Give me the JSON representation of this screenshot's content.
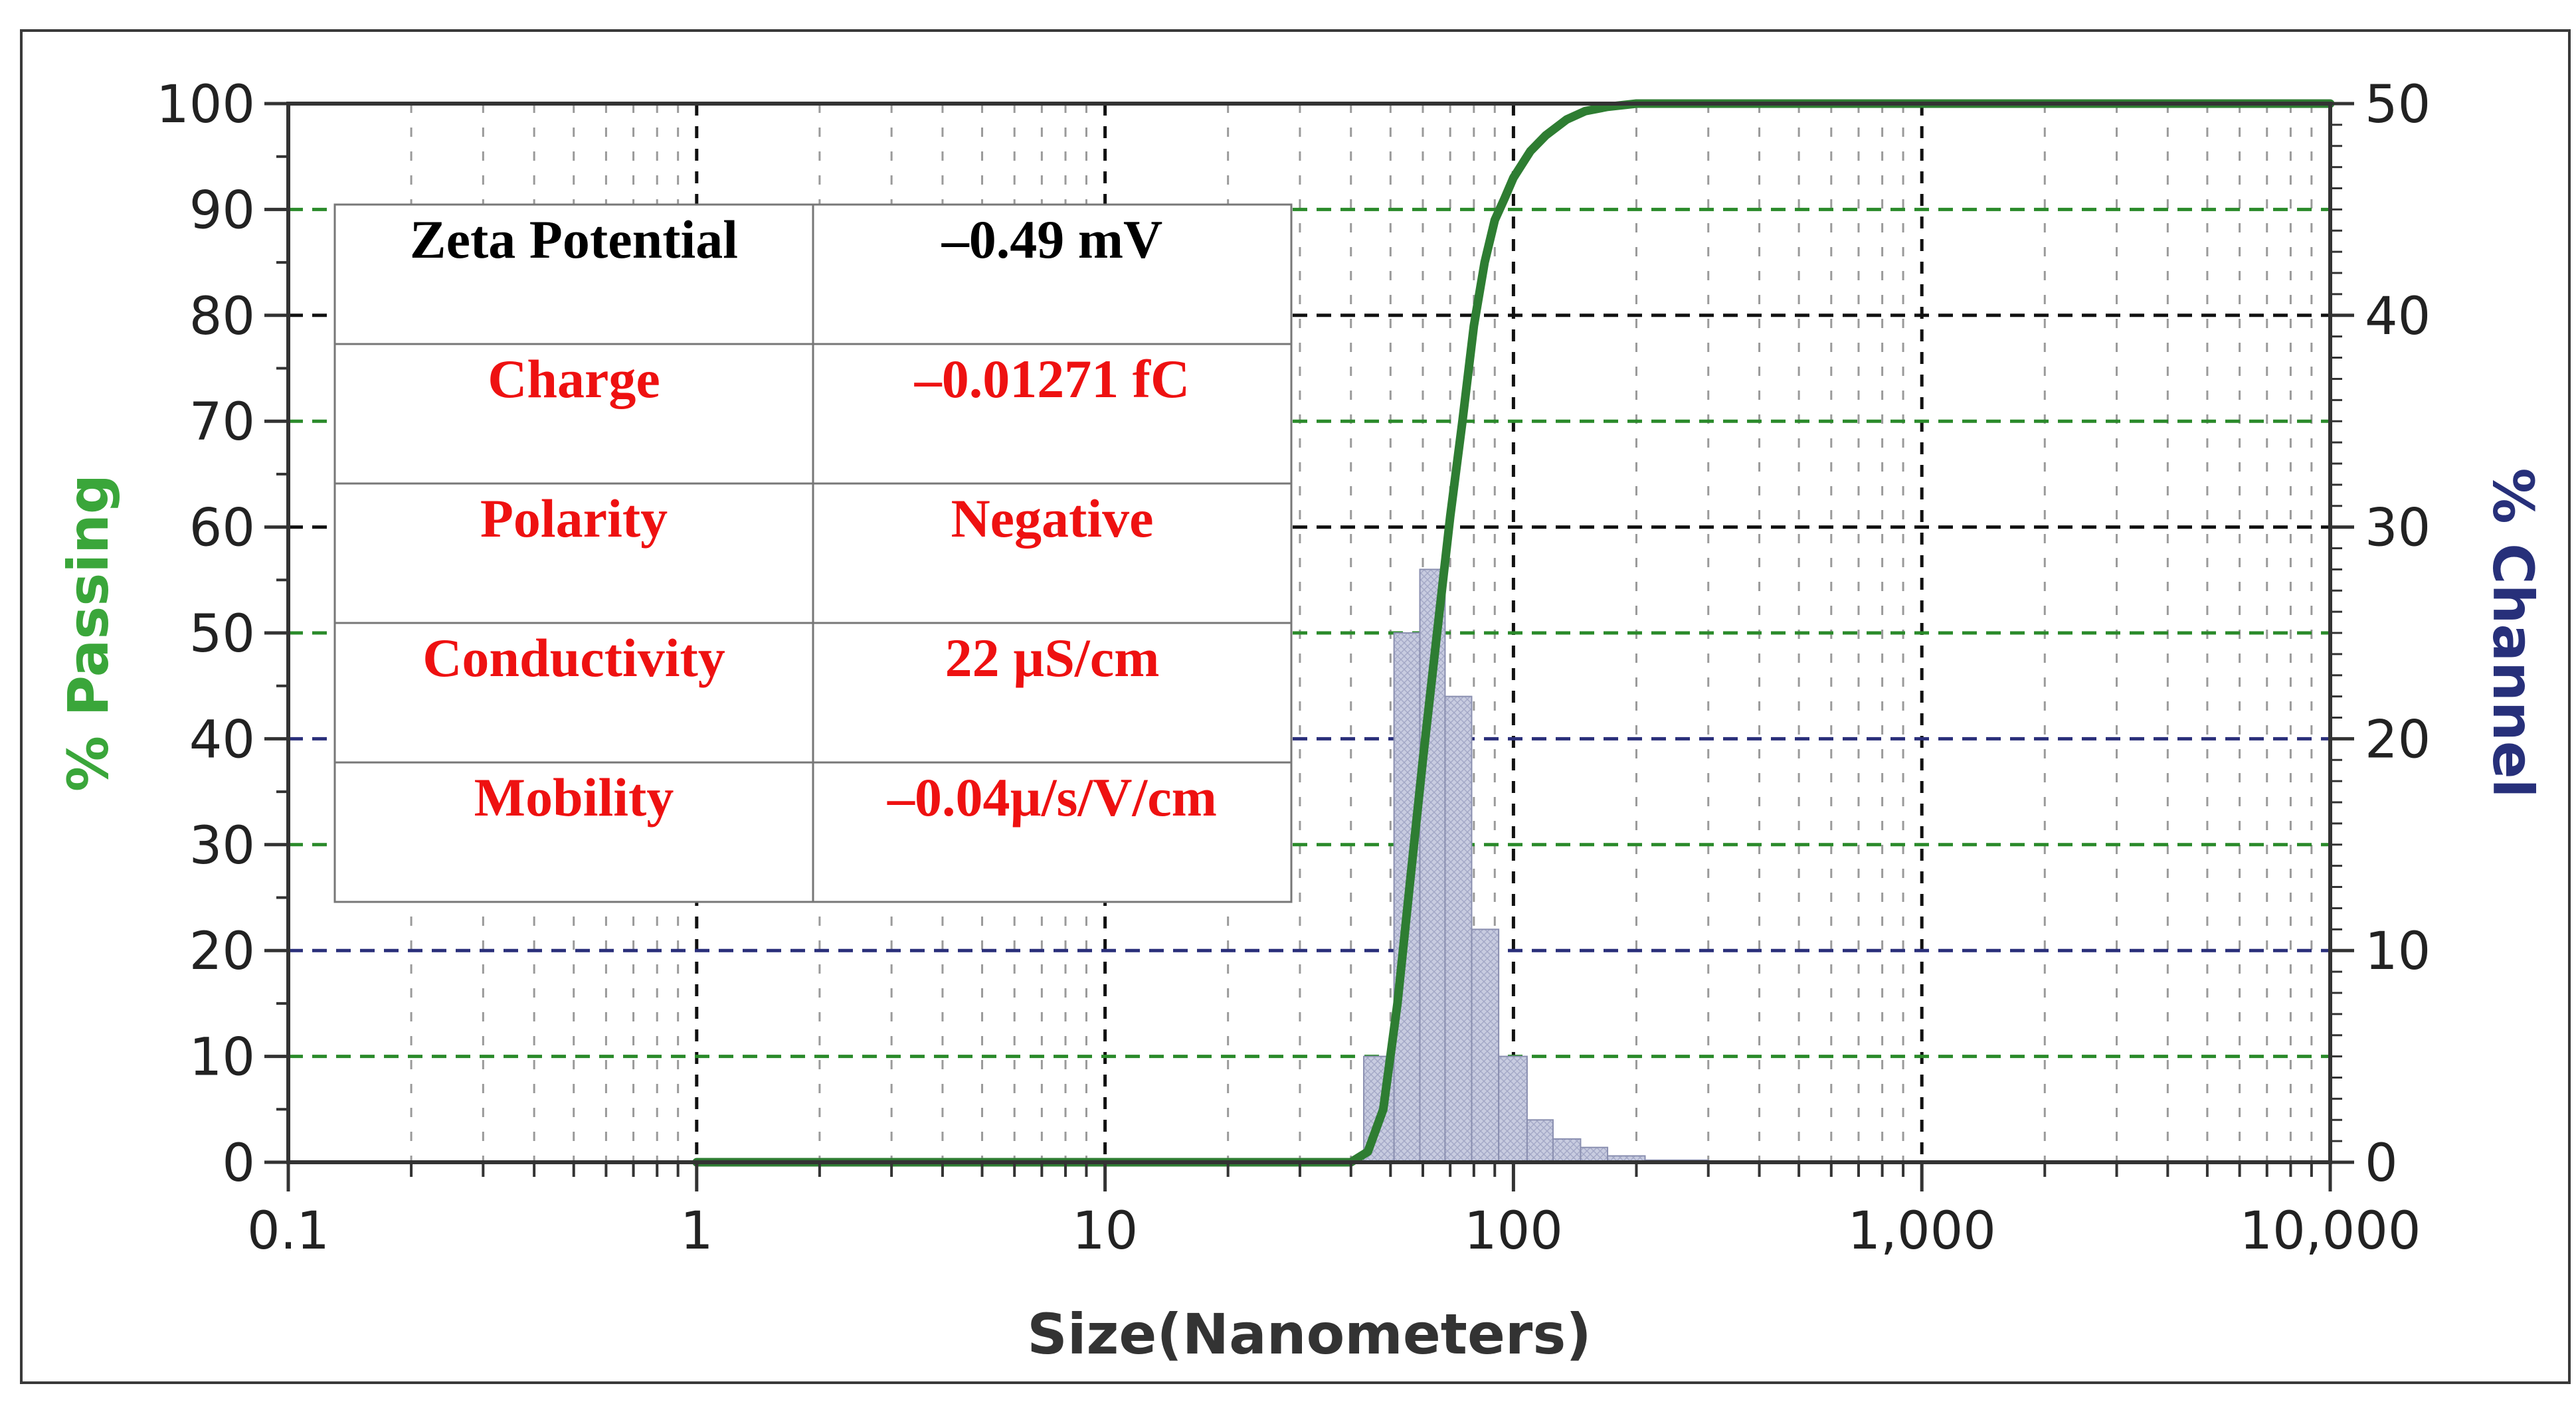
{
  "chart_data": {
    "type": "bar+line",
    "xlabel": "Size(Nanometers)",
    "ylabel_left": "% Passing",
    "ylabel_right": "% Channel",
    "x_scale": "log",
    "xlim": [
      0.1,
      10000
    ],
    "ylim_left": [
      0,
      100
    ],
    "ylim_right": [
      0,
      50
    ],
    "x_ticks": [
      0.1,
      1,
      10,
      100,
      1000,
      10000
    ],
    "x_tick_labels": [
      "0.1",
      "1",
      "10",
      "100",
      "1,000",
      "10,000"
    ],
    "y_left_ticks": [
      0,
      10,
      20,
      30,
      40,
      50,
      60,
      70,
      80,
      90,
      100
    ],
    "y_left_tick_labels": [
      "0",
      "10",
      "20",
      "30",
      "40",
      "50",
      "60",
      "70",
      "80",
      "90",
      "100"
    ],
    "y_right_ticks": [
      0,
      10,
      20,
      30,
      40,
      50
    ],
    "y_right_tick_labels": [
      "0",
      "10",
      "20",
      "30",
      "40",
      "50"
    ],
    "grid": true,
    "colors": {
      "passing": "#2e7d32",
      "channel_fill": "#c8cce0",
      "channel_edge": "#8a8fb0",
      "axis_label_left": "#3aa63a",
      "axis_label_right": "#27307a",
      "grid_black": "#111111",
      "grid_green": "#2a8a2a",
      "grid_blue": "#2a2f7a",
      "table_black": "#000000",
      "table_red": "#ee1111"
    },
    "series": [
      {
        "name": "% Channel",
        "type": "bar",
        "axis": "right",
        "bins": [
          {
            "x0": 43,
            "x1": 51,
            "value": 5
          },
          {
            "x0": 51,
            "x1": 59,
            "value": 25
          },
          {
            "x0": 59,
            "x1": 68,
            "value": 28
          },
          {
            "x0": 68,
            "x1": 79,
            "value": 22
          },
          {
            "x0": 79,
            "x1": 92,
            "value": 11
          },
          {
            "x0": 92,
            "x1": 108,
            "value": 5
          },
          {
            "x0": 108,
            "x1": 125,
            "value": 2
          },
          {
            "x0": 125,
            "x1": 146,
            "value": 1.1
          },
          {
            "x0": 146,
            "x1": 170,
            "value": 0.7
          },
          {
            "x0": 170,
            "x1": 210,
            "value": 0.3
          },
          {
            "x0": 210,
            "x1": 300,
            "value": 0.1
          }
        ]
      },
      {
        "name": "% Passing",
        "type": "line",
        "axis": "left",
        "x": [
          1,
          40,
          44,
          48,
          52,
          56,
          60,
          65,
          70,
          75,
          80,
          85,
          90,
          95,
          100,
          110,
          120,
          135,
          150,
          170,
          200,
          250,
          300,
          10000
        ],
        "y": [
          0,
          0,
          1,
          5,
          15,
          27,
          38,
          50,
          61,
          70,
          79,
          85,
          89,
          91,
          93,
          95.5,
          97,
          98.5,
          99.3,
          99.7,
          100,
          100,
          100,
          100
        ]
      }
    ],
    "table": {
      "rows": [
        {
          "label": "Zeta Potential",
          "value": "‒0.49 mV",
          "color": "black"
        },
        {
          "label": "Charge",
          "value": "‒0.01271 fC",
          "color": "red"
        },
        {
          "label": "Polarity",
          "value": "Negative",
          "color": "red"
        },
        {
          "label": "Conductivity",
          "value": "22 µS/cm",
          "color": "red"
        },
        {
          "label": "Mobility",
          "value": "‒0.04µ/s/V/cm",
          "color": "red"
        }
      ]
    }
  }
}
